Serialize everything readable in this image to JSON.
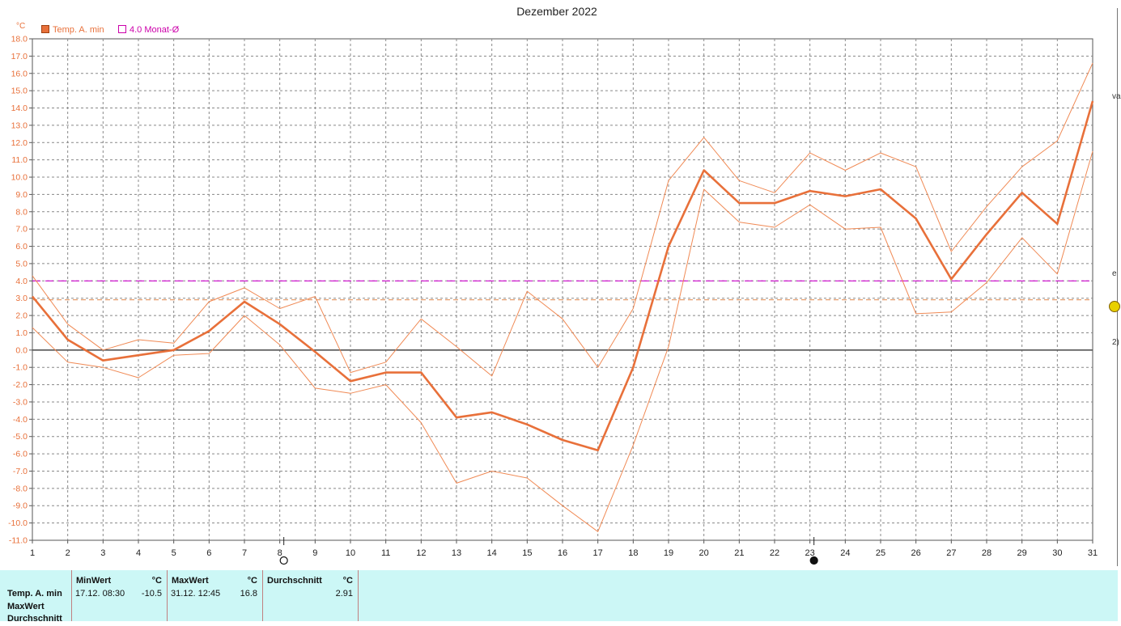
{
  "title": "Dezember 2022",
  "unit": "°C",
  "legend": [
    {
      "label": "Temp. A. min",
      "color": "#e8703a",
      "filled": true
    },
    {
      "label": "4.0 Monat-Ø",
      "color": "#cc00aa",
      "filled": false
    }
  ],
  "colors": {
    "main": "#e8703a",
    "thin": "#f08a55",
    "monthavg": "#cc00cc",
    "avg": "#e8a070",
    "zero": "#555555",
    "grid": "#888888"
  },
  "moon_markers": [
    {
      "day": 8,
      "symbol": "full-moon"
    },
    {
      "day": 23,
      "symbol": "new-moon"
    }
  ],
  "chart_data": {
    "type": "line",
    "x": [
      1,
      2,
      3,
      4,
      5,
      6,
      7,
      8,
      9,
      10,
      11,
      12,
      13,
      14,
      15,
      16,
      17,
      18,
      19,
      20,
      21,
      22,
      23,
      24,
      25,
      26,
      27,
      28,
      29,
      30,
      31
    ],
    "x_tick_labels": [
      "1",
      "2",
      "3",
      "4",
      "5",
      "6",
      "7",
      "8",
      "9",
      "10",
      "11",
      "12",
      "13",
      "14",
      "15",
      "16",
      "17",
      "18",
      "19",
      "20",
      "21",
      "22",
      "23",
      "24",
      "25",
      "26",
      "27",
      "28",
      "29",
      "30",
      "31"
    ],
    "ylim": [
      -11,
      18
    ],
    "y_tick_labels": [
      "18.0",
      "17.0",
      "16.0",
      "15.0",
      "14.0",
      "13.0",
      "12.0",
      "11.0",
      "10.0",
      "9.0",
      "8.0",
      "7.0",
      "6.0",
      "5.0",
      "4.0",
      "3.0",
      "2.0",
      "1.0",
      "0.0",
      "-1.0",
      "-2.0",
      "-3.0",
      "-4.0",
      "-5.0",
      "-6.0",
      "-7.0",
      "-8.0",
      "-9.0",
      "-10.0",
      "-11.0"
    ],
    "ylabel": "°C",
    "grid": true,
    "series": [
      {
        "name": "Temp. A. min",
        "values": [
          3.1,
          0.6,
          -0.6,
          -0.3,
          0.0,
          1.1,
          2.8,
          1.5,
          -0.1,
          -1.8,
          -1.3,
          -1.3,
          -3.9,
          -3.6,
          -4.3,
          -5.2,
          -5.8,
          -1.0,
          6.0,
          10.4,
          8.5,
          8.5,
          9.2,
          8.9,
          9.3,
          7.6,
          4.1,
          6.7,
          9.1,
          7.3,
          14.4
        ]
      },
      {
        "values": [
          4.3,
          1.5,
          0.0,
          0.6,
          0.4,
          2.8,
          3.6,
          2.4,
          3.1,
          -1.3,
          -0.7,
          1.8,
          0.2,
          -1.5,
          3.4,
          1.8,
          -1.0,
          2.4,
          9.8,
          12.3,
          9.8,
          9.1,
          11.4,
          10.4,
          11.4,
          10.6,
          5.7,
          8.3,
          10.6,
          12.1,
          16.6
        ]
      },
      {
        "values": [
          1.3,
          -0.7,
          -1.0,
          -1.6,
          -0.3,
          -0.2,
          2.0,
          0.3,
          -2.2,
          -2.5,
          -2.0,
          -4.2,
          -7.7,
          -7.0,
          -7.4,
          -9.0,
          -10.5,
          -5.5,
          0.2,
          9.3,
          7.4,
          7.1,
          8.4,
          7.0,
          7.1,
          2.1,
          2.2,
          3.9,
          6.5,
          4.4,
          11.5
        ]
      }
    ],
    "month_average": 4.0,
    "average": 2.91
  },
  "stats": {
    "row_labels": [
      "Temp. A. min",
      "MaxWert",
      "Durchschnitt"
    ],
    "min": {
      "header": "MinWert",
      "unit": "°C",
      "datetime": "17.12.  08:30",
      "value": "-10.5"
    },
    "max": {
      "header": "MaxWert",
      "unit": "°C",
      "datetime": "31.12.  12:45",
      "value": "16.8"
    },
    "avg": {
      "header": "Durchschnitt",
      "unit": "°C",
      "value": "2.91"
    }
  },
  "right_panel": {
    "fragments": [
      "va",
      "e",
      "2)"
    ]
  }
}
